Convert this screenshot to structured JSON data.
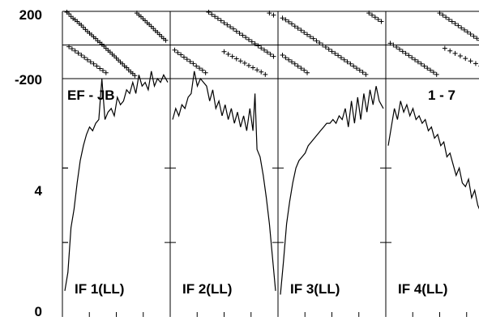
{
  "chart_data": {
    "type": "line",
    "baseline_label": "EF - JB",
    "channel_label": "1 - 7",
    "phase_axis": {
      "ticks": [
        "200",
        "-200"
      ],
      "range": [
        -200,
        200
      ]
    },
    "amp_axis": {
      "ticks": [
        "4",
        "0"
      ],
      "range": [
        0,
        6.4
      ]
    },
    "panels": [
      {
        "name": "IF 1(LL)",
        "phase_series": [
          {
            "x": [
              2,
              4,
              6,
              8,
              10,
              12,
              14,
              16,
              18,
              20,
              22,
              24,
              26,
              28,
              30,
              32,
              34,
              36,
              38,
              40,
              42,
              44,
              46,
              48,
              50,
              52,
              54,
              56,
              58,
              60,
              62,
              64,
              66,
              68,
              70,
              72,
              74,
              76,
              78,
              80,
              82,
              84,
              86,
              88,
              90,
              92,
              94,
              96,
              98
            ],
            "y": [
              195,
              185,
              170,
              158,
              150,
              140,
              128,
              118,
              105,
              92,
              80,
              70,
              60,
              48,
              38,
              25,
              15,
              5,
              -8,
              -20,
              -32,
              -42,
              -55,
              -65,
              -78,
              -90,
              -102,
              -112,
              -125,
              -135,
              -148,
              -160,
              -170,
              -182,
              190,
              178,
              168,
              156,
              145,
              132,
              122,
              110,
              98,
              85,
              75,
              62,
              50,
              38,
              28
            ]
          },
          {
            "x": [
              4,
              7,
              10,
              13,
              16,
              19,
              22,
              25,
              28,
              31,
              34,
              37,
              40
            ],
            "y": [
              -10,
              -22,
              -35,
              -48,
              -60,
              -74,
              -88,
              -100,
              -112,
              -125,
              -140,
              -152,
              -165
            ]
          }
        ],
        "amp_series": [
          {
            "x": [
              0,
              3,
              6,
              9,
              12,
              15,
              18,
              21,
              24,
              27,
              30,
              33,
              36,
              39,
              42,
              45,
              48,
              51,
              54,
              57,
              60,
              63,
              66,
              69,
              72,
              75,
              78,
              81,
              84,
              87,
              90,
              93,
              96,
              100
            ],
            "y": [
              0.7,
              1.2,
              2.4,
              2.9,
              3.6,
              4.2,
              4.6,
              4.9,
              5.1,
              5.0,
              5.2,
              5.3,
              6.4,
              5.3,
              5.5,
              5.6,
              5.4,
              5.9,
              5.7,
              5.8,
              6.1,
              6.0,
              6.3,
              6.0,
              6.5,
              6.2,
              6.3,
              6.1,
              6.6,
              6.2,
              6.4,
              6.3,
              6.5,
              6.3
            ]
          }
        ]
      },
      {
        "name": "IF 2(LL)",
        "phase_series": [
          {
            "x": [
              2,
              5,
              8,
              11,
              14,
              17,
              20,
              23,
              26,
              29,
              32,
              35,
              38,
              41,
              44,
              47,
              50,
              53,
              56,
              59,
              62,
              65,
              68,
              71,
              74,
              77,
              80,
              83,
              86,
              89,
              92,
              95,
              98
            ],
            "y": [
              -30,
              -45,
              -58,
              -72,
              -85,
              -98,
              -110,
              -125,
              -138,
              -150,
              -165,
              195,
              182,
              170,
              158,
              145,
              132,
              120,
              108,
              96,
              82,
              70,
              58,
              45,
              32,
              20,
              8,
              -5,
              -18,
              -30,
              -42,
              -55,
              -68
            ]
          },
          {
            "x": [
              50,
              54,
              58,
              62,
              66,
              70,
              74,
              78,
              82,
              86,
              90,
              94,
              98
            ],
            "y": [
              -40,
              -55,
              -68,
              -82,
              -95,
              -108,
              -122,
              -135,
              -148,
              -160,
              -175,
              190,
              178
            ]
          }
        ],
        "amp_series": [
          {
            "x": [
              0,
              3,
              6,
              9,
              12,
              15,
              18,
              21,
              24,
              27,
              30,
              33,
              36,
              39,
              42,
              45,
              48,
              51,
              54,
              57,
              60,
              63,
              66,
              69,
              72,
              75,
              78,
              80,
              82,
              85,
              88,
              91,
              94,
              97,
              100
            ],
            "y": [
              5.3,
              5.6,
              5.4,
              5.7,
              5.6,
              5.9,
              6.0,
              6.6,
              6.2,
              6.4,
              6.3,
              6.2,
              5.8,
              6.1,
              5.6,
              5.8,
              5.4,
              5.7,
              5.3,
              5.6,
              5.2,
              5.5,
              5.1,
              5.4,
              5.0,
              5.6,
              5.0,
              6.0,
              4.5,
              4.3,
              3.8,
              3.2,
              2.5,
              1.6,
              0.7
            ]
          }
        ]
      },
      {
        "name": "IF 3(LL)",
        "phase_series": [
          {
            "x": [
              2,
              5,
              8,
              11,
              14,
              17,
              20,
              23,
              26,
              29,
              32,
              35,
              38,
              41,
              44,
              47,
              50,
              53,
              56,
              59,
              62,
              65,
              68,
              71,
              74,
              77,
              80,
              83,
              86,
              89,
              92,
              95,
              98
            ],
            "y": [
              160,
              150,
              138,
              126,
              112,
              100,
              88,
              75,
              62,
              50,
              38,
              25,
              12,
              0,
              -12,
              -25,
              -38,
              -50,
              -62,
              -75,
              -88,
              -100,
              -112,
              -125,
              -138,
              -150,
              -162,
              -175,
              190,
              178,
              165,
              152,
              140
            ]
          },
          {
            "x": [
              2,
              5,
              8,
              11,
              14,
              17,
              20,
              23,
              26
            ],
            "y": [
              -60,
              -75,
              -88,
              -100,
              -112,
              -125,
              -138,
              -150,
              -165
            ]
          }
        ],
        "amp_series": [
          {
            "x": [
              0,
              3,
              6,
              9,
              12,
              15,
              18,
              21,
              24,
              27,
              30,
              33,
              36,
              39,
              42,
              45,
              48,
              51,
              54,
              57,
              60,
              63,
              66,
              69,
              72,
              75,
              78,
              81,
              84,
              87,
              90,
              93,
              96,
              100
            ],
            "y": [
              0.6,
              1.5,
              2.5,
              3.1,
              3.6,
              4.0,
              4.2,
              4.3,
              4.4,
              4.6,
              4.7,
              4.8,
              4.9,
              5.0,
              5.1,
              5.2,
              5.2,
              5.3,
              5.2,
              5.4,
              5.3,
              5.6,
              5.1,
              5.8,
              5.2,
              5.9,
              5.3,
              6.0,
              5.5,
              6.1,
              5.7,
              6.2,
              5.8,
              5.6
            ]
          }
        ]
      },
      {
        "name": "IF 4(LL)",
        "phase_series": [
          {
            "x": [
              2,
              5,
              8,
              11,
              14,
              17,
              20,
              23,
              26,
              29,
              32,
              35,
              38,
              41,
              44,
              47,
              50,
              53,
              56,
              59,
              62,
              65,
              68,
              71,
              74,
              77,
              80,
              83,
              86,
              89,
              92,
              95,
              98
            ],
            "y": [
              10,
              0,
              -12,
              -25,
              -38,
              -50,
              -62,
              -75,
              -88,
              -100,
              -112,
              -125,
              -138,
              -150,
              -162,
              -175,
              190,
              178,
              165,
              152,
              140,
              128,
              115,
              102,
              90,
              78,
              65,
              52,
              40,
              28,
              15,
              2,
              -10
            ]
          },
          {
            "x": [
              55,
              60,
              65,
              70,
              75,
              80,
              85,
              90,
              95,
              99
            ],
            "y": [
              -20,
              -35,
              -50,
              -65,
              -80,
              -95,
              -110,
              -125,
              -140,
              -155
            ]
          }
        ],
        "amp_series": [
          {
            "x": [
              0,
              3,
              6,
              9,
              12,
              15,
              18,
              21,
              24,
              27,
              30,
              33,
              36,
              39,
              42,
              45,
              48,
              51,
              54,
              57,
              60,
              63,
              66,
              69,
              72,
              75,
              78,
              81,
              84,
              87,
              90,
              93,
              96,
              100
            ],
            "y": [
              4.6,
              5.1,
              5.6,
              5.3,
              5.8,
              5.5,
              5.7,
              5.4,
              5.6,
              5.3,
              5.4,
              5.2,
              5.3,
              5.0,
              5.1,
              4.8,
              4.9,
              4.6,
              4.7,
              4.3,
              4.4,
              4.1,
              3.8,
              4.0,
              3.6,
              3.5,
              3.7,
              3.2,
              3.4,
              3.0,
              2.8,
              2.5,
              2.1,
              1.8
            ]
          }
        ]
      }
    ]
  }
}
